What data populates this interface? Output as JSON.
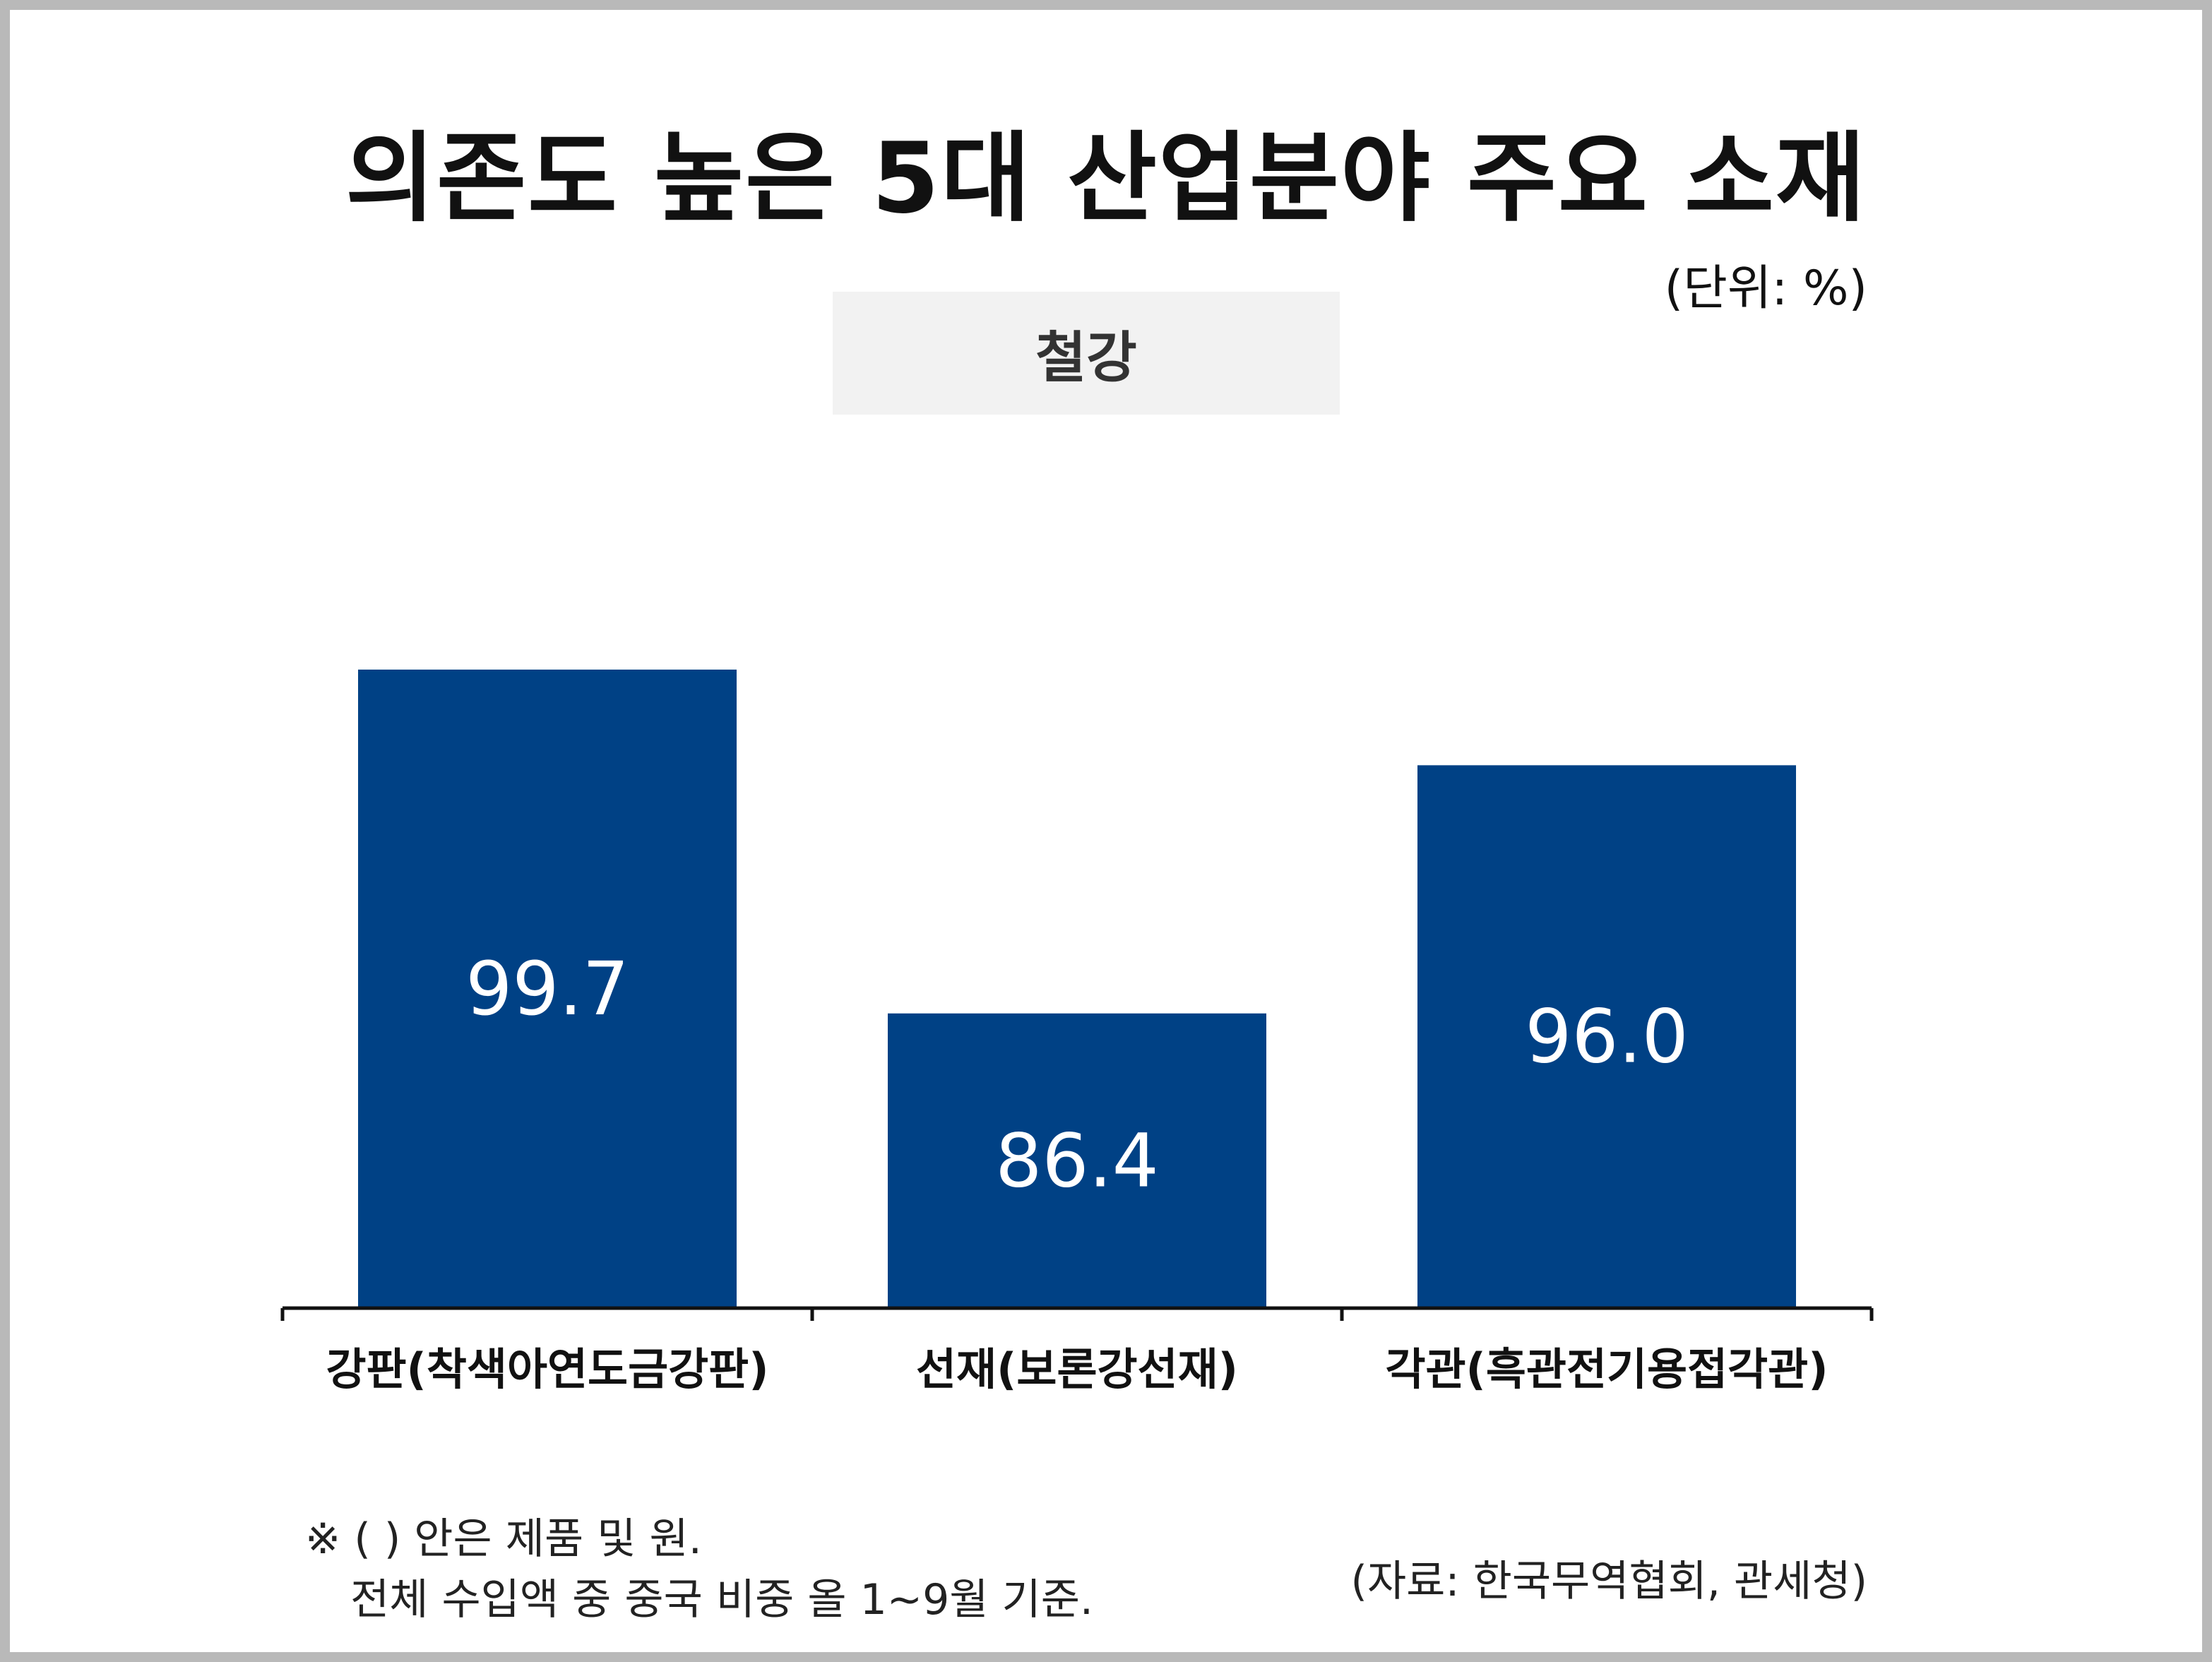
{
  "chart_data": {
    "type": "bar",
    "title": "의존도 높은 5대 산업분야 주요 소재",
    "unit_label": "(단위: %)",
    "category_label": "철강",
    "categories": [
      "강판(착색아연도금강판)",
      "선재(보론강선재)",
      "각관(흑관전기용접각관)"
    ],
    "values": [
      99.7,
      86.4,
      96.0
    ],
    "value_labels": [
      "99.7",
      "86.4",
      "96.0"
    ],
    "bar_color": "#004185",
    "ylim": [
      75,
      101
    ],
    "grid": false,
    "axis_ticks_shown": false
  },
  "footnote": {
    "line1": "※ ( ) 안은 제품 및 원.",
    "line2": "전체 수입액 중 중국 비중 올 1~9월 기준."
  },
  "source": "(자료: 한국무역협회, 관세청)"
}
